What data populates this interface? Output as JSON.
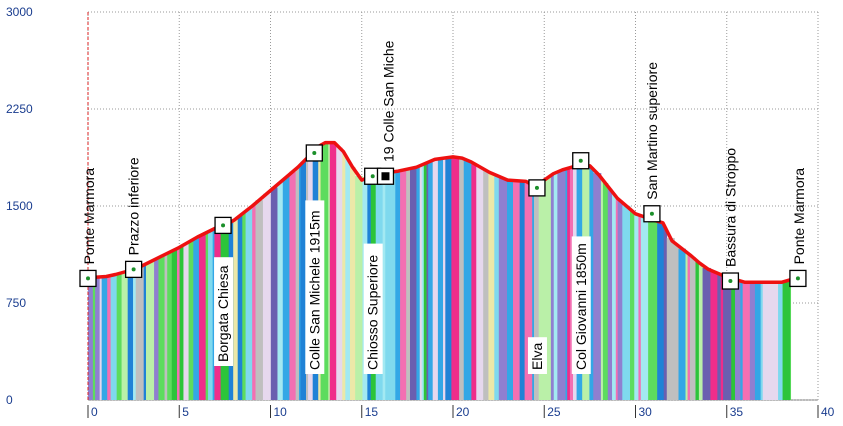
{
  "chart_data": {
    "type": "area",
    "title": "",
    "xlabel": "",
    "ylabel": "",
    "xlim": [
      0,
      40
    ],
    "ylim": [
      0,
      3000
    ],
    "x_ticks": [
      0,
      5,
      10,
      15,
      20,
      25,
      30,
      35,
      40
    ],
    "x_tick_labels": [
      "0",
      "5",
      "10",
      "15",
      "20",
      "25",
      "30",
      "35",
      "40"
    ],
    "y_ticks": [
      0,
      750,
      1500,
      2250,
      3000
    ],
    "y_tick_labels": [
      "0",
      "750",
      "1500",
      "2250",
      "3000"
    ],
    "grid": true,
    "colors": {
      "profile_line": "#ee1111",
      "axis_text": "#1a3d8f",
      "grid": "#9a9a9a",
      "start_marker": "#dd2222",
      "slope_palette": [
        "#a3e9f2",
        "#7fd9ee",
        "#baf0a8",
        "#5ddc5e",
        "#2cc43a",
        "#33a7e6",
        "#1f82d6",
        "#8f7fd0",
        "#6a5fb0",
        "#ef2d8a",
        "#f36fb2",
        "#ece8a8",
        "#e6d8ee",
        "#bfbfbf"
      ]
    },
    "series": [
      {
        "x": [
          0,
          0.5,
          1,
          1.5,
          2,
          2.5,
          3,
          4,
          5,
          6,
          7,
          7.5,
          8,
          9,
          10,
          11,
          11.5,
          12,
          12.5,
          13,
          13.5,
          14,
          14.5,
          15,
          15.5,
          16,
          16.5,
          17,
          18,
          19,
          20,
          20.5,
          21,
          22,
          23,
          24,
          24.5,
          25,
          25.5,
          26,
          27,
          27.5,
          28,
          28.5,
          29,
          30,
          31,
          31.5,
          32,
          33,
          33.5,
          34,
          35,
          36,
          37,
          38,
          38.5
        ],
        "y": [
          940,
          950,
          955,
          970,
          990,
          1010,
          1040,
          1110,
          1180,
          1260,
          1330,
          1350,
          1390,
          1500,
          1620,
          1740,
          1800,
          1870,
          1950,
          1990,
          1990,
          1920,
          1800,
          1700,
          1730,
          1750,
          1760,
          1770,
          1800,
          1860,
          1880,
          1870,
          1840,
          1760,
          1700,
          1690,
          1650,
          1700,
          1750,
          1780,
          1820,
          1810,
          1740,
          1650,
          1560,
          1440,
          1390,
          1370,
          1230,
          1120,
          1060,
          1010,
          950,
          910,
          910,
          910,
          930
        ]
      }
    ],
    "waypoints": [
      {
        "name": "Ponte Marmora",
        "km": 0,
        "elevation": 940,
        "type": "start"
      },
      {
        "name": "Prazzo inferiore",
        "km": 2.5,
        "elevation": 1010,
        "type": "waypoint"
      },
      {
        "name": "Borgata Chiesa",
        "km": 7.4,
        "elevation": 1350,
        "type": "waypoint"
      },
      {
        "name": "Colle San Michele 1915m",
        "km": 12.4,
        "elevation": 1910,
        "type": "summit"
      },
      {
        "name": "Chiosso Superiore",
        "km": 15.6,
        "elevation": 1730,
        "type": "waypoint"
      },
      {
        "name": "19 Colle San Miche",
        "km": 16.3,
        "elevation": 1730,
        "type": "food"
      },
      {
        "name": "Elva",
        "km": 24.6,
        "elevation": 1640,
        "type": "waypoint"
      },
      {
        "name": "Col Giovanni 1850m",
        "km": 27.0,
        "elevation": 1850,
        "type": "summit"
      },
      {
        "name": "San Martino superiore",
        "km": 30.9,
        "elevation": 1440,
        "type": "waypoint"
      },
      {
        "name": "Bassura di Stroppo",
        "km": 35.2,
        "elevation": 920,
        "type": "waypoint"
      },
      {
        "name": "Ponte Marmora",
        "km": 38.9,
        "elevation": 940,
        "type": "end"
      }
    ]
  }
}
